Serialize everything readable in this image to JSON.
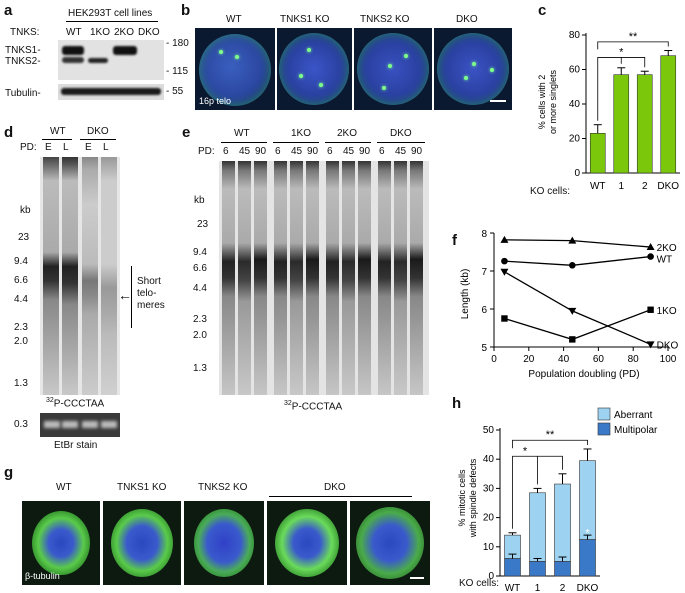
{
  "panel_a": {
    "label": "a",
    "title": "HEK293T cell lines",
    "row_label": "TNKS:",
    "lanes": [
      "WT",
      "1KO",
      "2KO",
      "DKO"
    ],
    "band_labels": [
      "TNKS1-",
      "TNKS2-",
      "Tubulin-"
    ],
    "markers": [
      "- 180",
      "- 115",
      "- 55"
    ]
  },
  "panel_b": {
    "label": "b",
    "images": [
      "WT",
      "TNKS1 KO",
      "TNKS2 KO",
      "DKO"
    ],
    "probe": "16p telo"
  },
  "panel_c": {
    "label": "c",
    "xaxis_prefix": "KO cells:",
    "significance": [
      "*",
      "**"
    ],
    "chart_data": {
      "type": "bar",
      "categories": [
        "WT",
        "1",
        "2",
        "DKO"
      ],
      "values": [
        23,
        57,
        57,
        68
      ],
      "errors": [
        5,
        4,
        2,
        3
      ],
      "ylabel": "% cells with 2 or more singlets",
      "ylim": [
        0,
        80
      ],
      "yticks": [
        "0",
        "20",
        "40",
        "60",
        "80"
      ],
      "color": "#7ac70c"
    }
  },
  "panel_d": {
    "label": "d",
    "groups": [
      "WT",
      "DKO"
    ],
    "pd_label": "PD:",
    "lanes": [
      "E",
      "L",
      "E",
      "L"
    ],
    "kb_label": "kb",
    "markers": [
      "23",
      "9.4",
      "6.6",
      "4.4",
      "2.3",
      "2.0",
      "1.3"
    ],
    "annotation": [
      "Short",
      "telo-",
      "meres"
    ],
    "probe": "32P-CCCTAA",
    "probe_sup": "32",
    "probe_rest": "P-CCCTAA",
    "stain_marker": "0.3",
    "stain_label": "EtBr stain"
  },
  "panel_e": {
    "label": "e",
    "groups": [
      "WT",
      "1KO",
      "2KO",
      "DKO"
    ],
    "pd_label": "PD:",
    "lanes": [
      "6",
      "45",
      "90",
      "6",
      "45",
      "90",
      "6",
      "45",
      "90",
      "6",
      "45",
      "90"
    ],
    "kb_label": "kb",
    "markers": [
      "23",
      "9.4",
      "6.6",
      "4.4",
      "2.3",
      "2.0",
      "1.3"
    ],
    "probe_sup": "32",
    "probe_rest": "P-CCCTAA"
  },
  "panel_f": {
    "label": "f",
    "chart_data": {
      "type": "line",
      "xlabel": "Population doubling (PD)",
      "ylabel": "Length (kb)",
      "xlim": [
        0,
        100
      ],
      "ylim": [
        5,
        8
      ],
      "xticks": [
        "0",
        "20",
        "40",
        "60",
        "80",
        "100"
      ],
      "yticks": [
        "5",
        "6",
        "7",
        "8"
      ],
      "series": [
        {
          "name": "2KO",
          "marker": "triangle-up",
          "x": [
            6,
            45,
            90
          ],
          "y": [
            7.82,
            7.8,
            7.63
          ]
        },
        {
          "name": "WT",
          "marker": "circle",
          "x": [
            6,
            45,
            90
          ],
          "y": [
            7.26,
            7.15,
            7.38
          ]
        },
        {
          "name": "1KO",
          "marker": "square",
          "x": [
            6,
            45,
            90
          ],
          "y": [
            5.75,
            5.2,
            5.98
          ]
        },
        {
          "name": "DKO",
          "marker": "triangle-down",
          "x": [
            6,
            45,
            90
          ],
          "y": [
            6.98,
            5.95,
            5.07
          ]
        }
      ]
    }
  },
  "panel_g": {
    "label": "g",
    "images": [
      "WT",
      "TNKS1 KO",
      "TNKS2 KO",
      "DKO"
    ],
    "stain": "β-tubulin"
  },
  "panel_h": {
    "label": "h",
    "xaxis_prefix": "KO cells:",
    "significance": [
      "*",
      "**"
    ],
    "inner_star": "*",
    "chart_data": {
      "type": "bar",
      "stacked": true,
      "categories": [
        "WT",
        "1",
        "2",
        "DKO"
      ],
      "series": [
        {
          "name": "Multipolar",
          "values": [
            6,
            5,
            5,
            12.5
          ],
          "errors": [
            1.5,
            1,
            1.5,
            1.5
          ],
          "color": "#3a78c8"
        },
        {
          "name": "Aberrant",
          "values": [
            8,
            23.5,
            26.5,
            27
          ],
          "errors": [
            0.8,
            1.5,
            3.5,
            4
          ],
          "color": "#9dd3f0"
        }
      ],
      "ylabel": "% mitotic cells with spindle defects",
      "ylim": [
        0,
        50
      ],
      "yticks": [
        "0",
        "10",
        "20",
        "30",
        "40",
        "50"
      ],
      "legend": "top-right"
    }
  }
}
